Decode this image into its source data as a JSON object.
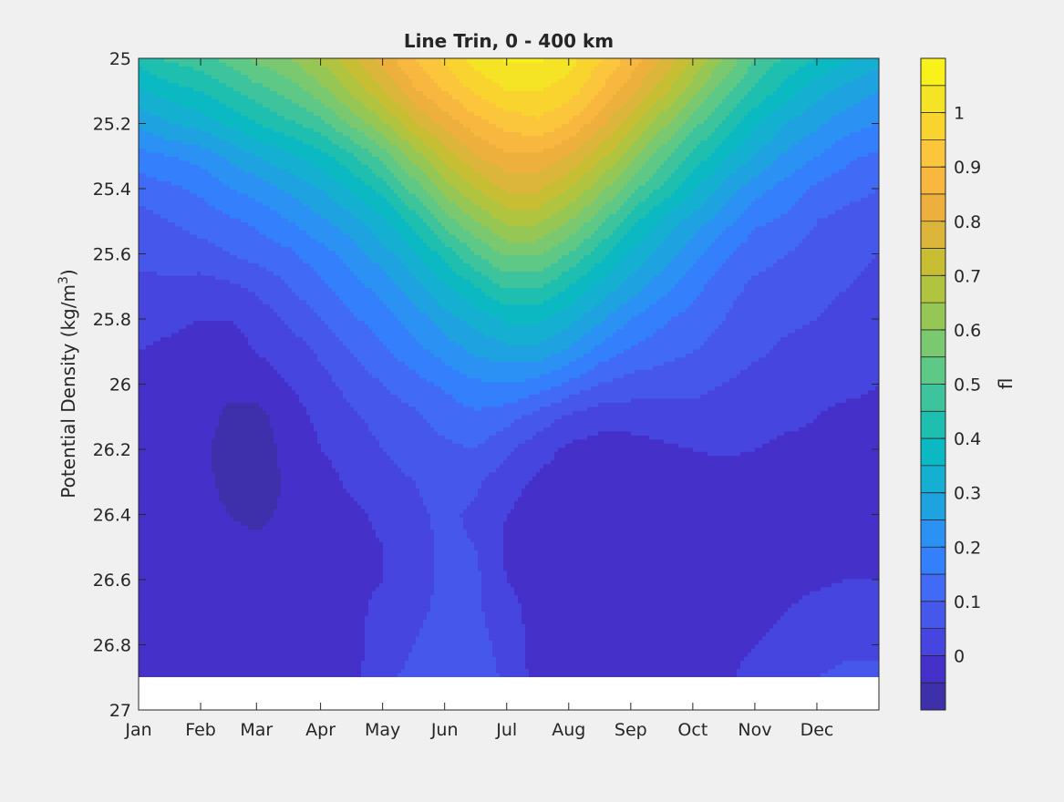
{
  "chart_data": {
    "type": "contourf",
    "title": "Line Trin, 0 - 400 km",
    "xlabel": "",
    "ylabel_main": "Potential Density (kg/m",
    "ylabel_sup": "3",
    "ylabel_close": ")",
    "x_tick_labels": [
      "Jan",
      "Feb",
      "Mar",
      "Apr",
      "May",
      "Jun",
      "Jul",
      "Aug",
      "Sep",
      "Oct",
      "Nov",
      "Dec"
    ],
    "x_ticks": [
      1,
      31,
      58,
      89,
      119,
      149,
      179,
      209,
      239,
      269,
      299,
      329
    ],
    "xlim": [
      1,
      359
    ],
    "y_tick_labels": [
      "25",
      "25.2",
      "25.4",
      "25.6",
      "25.8",
      "26",
      "26.2",
      "26.4",
      "26.6",
      "26.8",
      "27"
    ],
    "y_ticks": [
      25.0,
      25.2,
      25.4,
      25.6,
      25.8,
      26.0,
      26.2,
      26.4,
      26.6,
      26.8,
      27.0
    ],
    "ylim": [
      25.0,
      27.0
    ],
    "y_reversed": true,
    "data_ymax": 26.9,
    "colorbar": {
      "label": "fl",
      "tick_labels": [
        "0",
        "0.1",
        "0.2",
        "0.3",
        "0.4",
        "0.5",
        "0.6",
        "0.7",
        "0.8",
        "0.9",
        "1"
      ],
      "ticks": [
        0,
        0.1,
        0.2,
        0.3,
        0.4,
        0.5,
        0.6,
        0.7,
        0.8,
        0.9,
        1.0
      ],
      "range": [
        -0.1,
        1.1
      ],
      "levels": [
        -0.1,
        -0.05,
        0,
        0.05,
        0.1,
        0.15,
        0.2,
        0.25,
        0.3,
        0.35,
        0.4,
        0.45,
        0.5,
        0.55,
        0.6,
        0.65,
        0.7,
        0.75,
        0.8,
        0.85,
        0.9,
        0.95,
        1.0,
        1.05,
        1.1
      ],
      "colors": [
        "#3e2fab",
        "#4530c9",
        "#4745df",
        "#4658ec",
        "#416bf7",
        "#347ffc",
        "#2b92f4",
        "#1fa2e0",
        "#15b0d1",
        "#0bb9c3",
        "#1fbfb0",
        "#3ec49c",
        "#5ec887",
        "#7ac86f",
        "#96c755",
        "#b1c43f",
        "#c7be34",
        "#dbb63a",
        "#edb03c",
        "#f8b73f",
        "#fbc63c",
        "#f9d42f",
        "#f5e325",
        "#f9f21a"
      ]
    },
    "x": [
      1,
      16,
      31,
      45,
      58,
      74,
      89,
      104,
      119,
      134,
      149,
      164,
      179,
      194,
      209,
      224,
      239,
      254,
      269,
      284,
      299,
      314,
      329,
      344,
      359
    ],
    "y": [
      25.0,
      25.1,
      25.2,
      25.3,
      25.4,
      25.5,
      25.6,
      25.7,
      25.8,
      25.9,
      26.0,
      26.1,
      26.2,
      26.3,
      26.4,
      26.5,
      26.6,
      26.7,
      26.8,
      26.9
    ],
    "z": [
      [
        0.42,
        0.46,
        0.48,
        0.52,
        0.56,
        0.6,
        0.66,
        0.74,
        0.82,
        0.9,
        0.96,
        1.02,
        1.06,
        1.06,
        1.02,
        0.96,
        0.88,
        0.8,
        0.7,
        0.6,
        0.5,
        0.44,
        0.4,
        0.36,
        0.32
      ],
      [
        0.34,
        0.38,
        0.4,
        0.44,
        0.48,
        0.52,
        0.58,
        0.66,
        0.74,
        0.84,
        0.9,
        0.96,
        1.0,
        1.0,
        0.98,
        0.9,
        0.82,
        0.72,
        0.62,
        0.52,
        0.44,
        0.38,
        0.32,
        0.28,
        0.25
      ],
      [
        0.26,
        0.3,
        0.32,
        0.36,
        0.4,
        0.44,
        0.48,
        0.56,
        0.64,
        0.74,
        0.82,
        0.88,
        0.92,
        0.94,
        0.9,
        0.82,
        0.72,
        0.62,
        0.52,
        0.44,
        0.36,
        0.3,
        0.26,
        0.22,
        0.2
      ],
      [
        0.18,
        0.2,
        0.22,
        0.26,
        0.3,
        0.34,
        0.38,
        0.44,
        0.52,
        0.62,
        0.72,
        0.8,
        0.84,
        0.84,
        0.8,
        0.72,
        0.62,
        0.52,
        0.44,
        0.36,
        0.3,
        0.24,
        0.2,
        0.16,
        0.14
      ],
      [
        0.12,
        0.14,
        0.16,
        0.2,
        0.22,
        0.26,
        0.3,
        0.36,
        0.42,
        0.52,
        0.62,
        0.7,
        0.76,
        0.76,
        0.7,
        0.62,
        0.52,
        0.44,
        0.36,
        0.28,
        0.22,
        0.18,
        0.14,
        0.12,
        0.1
      ],
      [
        0.08,
        0.1,
        0.12,
        0.14,
        0.16,
        0.2,
        0.24,
        0.28,
        0.34,
        0.42,
        0.52,
        0.6,
        0.66,
        0.66,
        0.6,
        0.52,
        0.42,
        0.34,
        0.28,
        0.22,
        0.16,
        0.14,
        0.1,
        0.08,
        0.07
      ],
      [
        0.06,
        0.07,
        0.08,
        0.1,
        0.12,
        0.14,
        0.18,
        0.22,
        0.28,
        0.34,
        0.42,
        0.5,
        0.56,
        0.56,
        0.5,
        0.42,
        0.34,
        0.28,
        0.22,
        0.16,
        0.12,
        0.1,
        0.08,
        0.06,
        0.05
      ],
      [
        0.04,
        0.04,
        0.03,
        0.04,
        0.06,
        0.1,
        0.14,
        0.18,
        0.22,
        0.28,
        0.34,
        0.4,
        0.46,
        0.46,
        0.4,
        0.34,
        0.28,
        0.22,
        0.17,
        0.12,
        0.09,
        0.08,
        0.06,
        0.05,
        0.04
      ],
      [
        0.02,
        0.01,
        0.0,
        0.0,
        0.02,
        0.06,
        0.1,
        0.14,
        0.18,
        0.22,
        0.28,
        0.32,
        0.36,
        0.36,
        0.32,
        0.26,
        0.2,
        0.16,
        0.13,
        0.1,
        0.07,
        0.06,
        0.05,
        0.04,
        0.03
      ],
      [
        0.0,
        -0.01,
        -0.02,
        -0.02,
        0.0,
        0.02,
        0.06,
        0.1,
        0.14,
        0.18,
        0.22,
        0.26,
        0.28,
        0.28,
        0.24,
        0.18,
        0.14,
        0.12,
        0.1,
        0.08,
        0.06,
        0.04,
        0.03,
        0.02,
        0.02
      ],
      [
        -0.01,
        -0.02,
        -0.03,
        -0.04,
        -0.02,
        0.0,
        0.03,
        0.07,
        0.1,
        0.13,
        0.16,
        0.19,
        0.2,
        0.18,
        0.14,
        0.1,
        0.08,
        0.07,
        0.06,
        0.05,
        0.03,
        0.02,
        0.01,
        0.01,
        0.0
      ],
      [
        -0.02,
        -0.03,
        -0.03,
        -0.06,
        -0.07,
        -0.02,
        0.01,
        0.04,
        0.07,
        0.09,
        0.12,
        0.14,
        0.12,
        0.08,
        0.04,
        0.02,
        0.02,
        0.03,
        0.04,
        0.03,
        0.02,
        0.01,
        0.0,
        -0.01,
        -0.01
      ],
      [
        -0.02,
        -0.03,
        -0.04,
        -0.07,
        -0.08,
        -0.03,
        0.0,
        0.02,
        0.05,
        0.07,
        0.09,
        0.1,
        0.06,
        0.02,
        -0.01,
        -0.02,
        -0.02,
        -0.01,
        0.0,
        0.01,
        0.0,
        -0.01,
        -0.01,
        -0.02,
        -0.02
      ],
      [
        -0.03,
        -0.03,
        -0.04,
        -0.06,
        -0.08,
        -0.04,
        -0.02,
        0.01,
        0.03,
        0.05,
        0.07,
        0.06,
        0.02,
        -0.01,
        -0.02,
        -0.03,
        -0.03,
        -0.03,
        -0.03,
        -0.03,
        -0.03,
        -0.03,
        -0.03,
        -0.03,
        -0.03
      ],
      [
        -0.03,
        -0.03,
        -0.04,
        -0.05,
        -0.06,
        -0.04,
        -0.03,
        -0.01,
        0.01,
        0.04,
        0.06,
        0.04,
        0.0,
        -0.02,
        -0.03,
        -0.03,
        -0.03,
        -0.03,
        -0.03,
        -0.03,
        -0.03,
        -0.03,
        -0.03,
        -0.03,
        -0.03
      ],
      [
        -0.03,
        -0.03,
        -0.04,
        -0.04,
        -0.04,
        -0.04,
        -0.03,
        -0.02,
        0.0,
        0.03,
        0.06,
        0.05,
        -0.01,
        -0.02,
        -0.03,
        -0.03,
        -0.03,
        -0.03,
        -0.03,
        -0.03,
        -0.03,
        -0.03,
        -0.03,
        -0.03,
        -0.03
      ],
      [
        -0.03,
        -0.03,
        -0.03,
        -0.03,
        -0.03,
        -0.03,
        -0.03,
        -0.02,
        0.0,
        0.03,
        0.06,
        0.06,
        0.0,
        -0.02,
        -0.03,
        -0.03,
        -0.03,
        -0.03,
        -0.03,
        -0.03,
        -0.03,
        -0.02,
        -0.01,
        0.0,
        0.0
      ],
      [
        -0.03,
        -0.03,
        -0.03,
        -0.03,
        -0.03,
        -0.03,
        -0.03,
        -0.02,
        0.02,
        0.04,
        0.06,
        0.06,
        0.02,
        -0.02,
        -0.03,
        -0.03,
        -0.03,
        -0.03,
        -0.03,
        -0.03,
        -0.02,
        0.0,
        0.02,
        0.03,
        0.02
      ],
      [
        -0.02,
        -0.02,
        -0.03,
        -0.03,
        -0.03,
        -0.03,
        -0.03,
        -0.02,
        0.03,
        0.05,
        0.07,
        0.07,
        0.03,
        -0.02,
        -0.03,
        -0.03,
        -0.03,
        -0.03,
        -0.03,
        -0.02,
        0.0,
        0.02,
        0.03,
        0.04,
        0.04
      ],
      [
        0.0,
        -0.02,
        -0.03,
        -0.03,
        -0.03,
        -0.03,
        -0.03,
        -0.02,
        0.04,
        0.06,
        0.08,
        0.08,
        0.04,
        -0.02,
        -0.03,
        -0.03,
        -0.03,
        -0.03,
        -0.03,
        -0.01,
        0.02,
        0.04,
        0.05,
        0.06,
        0.06
      ]
    ],
    "grid": false,
    "legend": "colorbar-right"
  }
}
